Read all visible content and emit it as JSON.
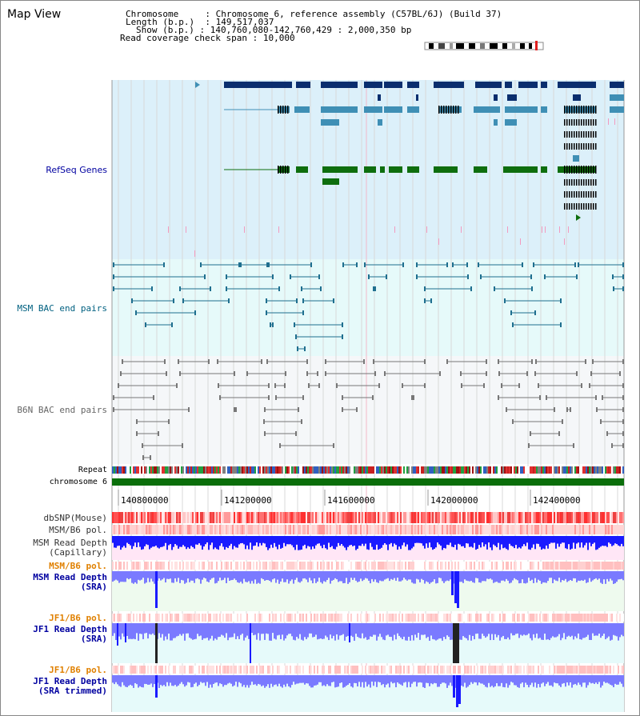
{
  "page": {
    "title": "Map View"
  },
  "info": {
    "chromosome_label": "Chromosome",
    "chromosome_value": "Chromosome 6, reference assembly (C57BL/6J) (Build 37)",
    "length_label": "Length (b.p.)",
    "length_value": "149,517,037",
    "show_label": "Show (b.p.)",
    "show_value": "140,760,080-142,760,429 : 2,000,350 bp",
    "coverage_label": "Read coverage check span",
    "coverage_value": "10,000"
  },
  "tracks": {
    "refseq": "RefSeq Genes",
    "msm_bac": "MSM BAC end pairs",
    "b6n_bac": "B6N BAC end pairs",
    "repeat": "Repeat",
    "chromosome": "chromosome 6",
    "dbsnp": "dbSNP(Mouse)",
    "msm_b6_pol": "MSM/B6 pol.",
    "msm_depth_cap_1": "MSM Read Depth",
    "msm_depth_cap_2": "(Capillary)",
    "msm_b6_pol2": "MSM/B6 pol.",
    "msm_depth_sra_1": "MSM Read Depth",
    "msm_depth_sra_2": "(SRA)",
    "jf1_b6_pol": "JF1/B6 pol.",
    "jf1_depth_sra_1": "JF1 Read Depth",
    "jf1_depth_sra_2": "(SRA)",
    "jf1_b6_pol2": "JF1/B6 pol.",
    "jf1_depth_trim_1": "JF1 Read Depth",
    "jf1_depth_trim_2": "(SRA trimmed)"
  },
  "axis": {
    "ticks": [
      "140800000",
      "141200000",
      "141600000",
      "142000000",
      "142400000"
    ]
  },
  "colors": {
    "refseq_bg": "#dcf0fa",
    "msm_bg": "#e6fafa",
    "b6n_bg": "#f5f7f9",
    "gene_dark": "#0a2e6e",
    "gene_mid": "#3f8fb5",
    "gene_green": "#0e6e0e",
    "msm_label": "#006080",
    "blue_label": "#0000a0",
    "orange_label": "#e08000",
    "depth_blue": "#1a1aff",
    "depth_light": "#7a7aff",
    "chrom_green": "#0a6e0a"
  }
}
